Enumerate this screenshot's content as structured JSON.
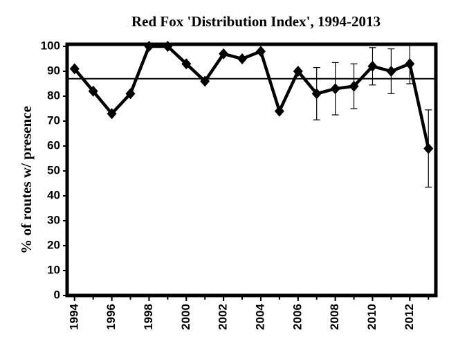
{
  "chart_data": {
    "type": "line",
    "title": "Red Fox 'Distribution Index', 1994-2013",
    "y_label": "% of routes w/ presence",
    "x": [
      1994,
      1995,
      1996,
      1997,
      1998,
      1999,
      2000,
      2001,
      2002,
      2003,
      2004,
      2005,
      2006,
      2007,
      2008,
      2009,
      2010,
      2011,
      2012,
      2013
    ],
    "series": [
      {
        "color": "#000000",
        "values": [
          91,
          82,
          73,
          81,
          100,
          100,
          93,
          86,
          97,
          95,
          98,
          74,
          90,
          81,
          83,
          84,
          92,
          90,
          93,
          59
        ],
        "errors": [
          null,
          null,
          null,
          null,
          null,
          null,
          null,
          null,
          null,
          null,
          null,
          null,
          null,
          10.5,
          10.5,
          9,
          7.5,
          9,
          8,
          15.5
        ]
      }
    ],
    "reference_line": 87,
    "xlim": [
      1993.6,
      2013.4
    ],
    "xticks": [
      1994,
      1996,
      1998,
      2000,
      2002,
      2004,
      2006,
      2008,
      2010,
      2012
    ],
    "ylim": [
      0,
      100
    ],
    "yticks": [
      0,
      10,
      20,
      30,
      40,
      50,
      60,
      70,
      80,
      90,
      100
    ],
    "grid": false
  }
}
